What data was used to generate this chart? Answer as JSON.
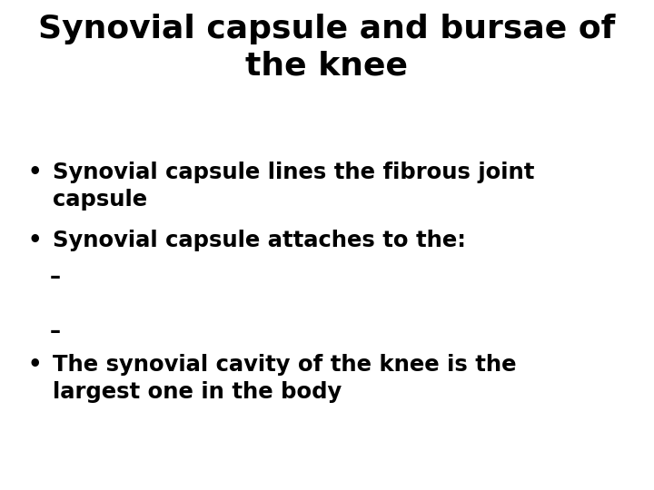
{
  "title_line1": "Synovial capsule and bursae of",
  "title_line2": "the knee",
  "title_fontsize": 26,
  "title_color": "#000000",
  "background_color": "#ffffff",
  "bullet_color": "#000000",
  "bullet_fontsize": 17.5,
  "dash_fontsize": 17.5,
  "bullets": [
    "Synovial capsule lines the fibrous joint\ncapsule",
    "Synovial capsule attaches to the:"
  ],
  "dashes": [
    "–",
    "–"
  ],
  "bullet3": "The synovial cavity of the knee is the\nlargest one in the body",
  "font_family": "DejaVu Sans",
  "font_weight": "bold"
}
